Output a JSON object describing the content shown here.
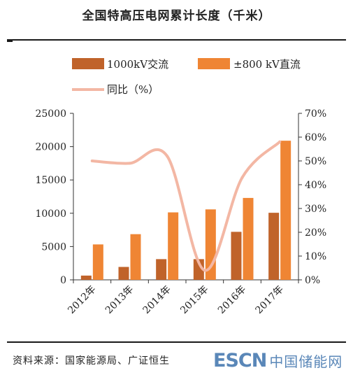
{
  "title": "全国特高压电网累计长度（千米）",
  "source": "资料来源：国家能源局、广证恒生",
  "watermark": {
    "latin": "ESCN",
    "cjk": "中国储能网"
  },
  "colors": {
    "ac": "#c0632a",
    "dc": "#ef8534",
    "line": "#f3b7a4",
    "axis": "#333333"
  },
  "chart_data": {
    "type": "bar",
    "categories": [
      "2012年",
      "2013年",
      "2014年",
      "2015年",
      "2016年",
      "2017年"
    ],
    "series": [
      {
        "name": "1000kV交流",
        "type": "bar",
        "axis": "left",
        "values": [
          640,
          1940,
          3110,
          3110,
          7210,
          10070
        ]
      },
      {
        "name": "±800 kV直流",
        "type": "bar",
        "axis": "left",
        "values": [
          5320,
          6860,
          10130,
          10580,
          12300,
          20890
        ]
      },
      {
        "name": "同比（%）",
        "type": "line",
        "axis": "right",
        "values": [
          50,
          49,
          52,
          4,
          43,
          58
        ]
      }
    ],
    "y_left": {
      "min": 0,
      "max": 25000,
      "ticks": [
        "0",
        "5000",
        "10000",
        "15000",
        "20000",
        "25000"
      ]
    },
    "y_right": {
      "min": 0,
      "max": 70,
      "ticks": [
        "0%",
        "10%",
        "20%",
        "30%",
        "40%",
        "50%",
        "60%",
        "70%"
      ]
    },
    "legend_position": "top",
    "grid": false
  }
}
